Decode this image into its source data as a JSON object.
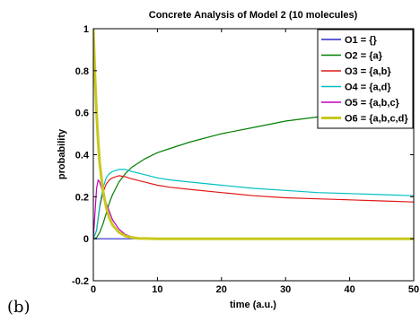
{
  "panel_label": "(b)",
  "colors": {
    "axis": "#000000",
    "O1": "#2828c8",
    "O2": "#008000",
    "O3": "#e01818",
    "O4": "#00c0c0",
    "O5": "#c000c0",
    "O6": "#c8c81e"
  },
  "chart_data": {
    "type": "line",
    "title": "Concrete Analysis of Model 2 (10 molecules)",
    "xlabel": "time (a.u.)",
    "ylabel": "probability",
    "xlim": [
      0,
      50
    ],
    "ylim": [
      -0.2,
      1
    ],
    "xticks": [
      0,
      10,
      20,
      30,
      40,
      50
    ],
    "xtick_labels": [
      "0",
      "10",
      "20",
      "30",
      "40",
      "50"
    ],
    "yticks": [
      -0.2,
      0,
      0.2,
      0.4,
      0.6,
      0.8,
      1
    ],
    "ytick_labels": [
      "-0.2",
      "0",
      "0.2",
      "0.4",
      "0.6",
      "0.8",
      "1"
    ],
    "grid": false,
    "legend_position": "top-right",
    "series": [
      {
        "name": "O1 = {}",
        "color": "#2828c8",
        "x": [
          0,
          0.5,
          1,
          2,
          3,
          5,
          10,
          20,
          30,
          40,
          50
        ],
        "y": [
          0,
          0,
          0,
          0,
          0,
          0,
          0,
          0,
          0,
          0,
          0
        ]
      },
      {
        "name": "O2 = {a}",
        "color": "#008000",
        "x": [
          0,
          0.5,
          1,
          1.5,
          2,
          2.5,
          3,
          4,
          5,
          6,
          7,
          8,
          10,
          12,
          15,
          20,
          25,
          30,
          35,
          40,
          45,
          50
        ],
        "y": [
          0,
          0.005,
          0.03,
          0.07,
          0.12,
          0.17,
          0.21,
          0.27,
          0.31,
          0.34,
          0.36,
          0.38,
          0.41,
          0.43,
          0.46,
          0.5,
          0.53,
          0.56,
          0.58,
          0.6,
          0.615,
          0.63
        ]
      },
      {
        "name": "O3 = {a,b}",
        "color": "#e01818",
        "x": [
          0,
          0.5,
          1,
          1.5,
          2,
          2.5,
          3,
          3.5,
          4,
          5,
          6,
          8,
          10,
          12,
          15,
          20,
          25,
          30,
          35,
          40,
          45,
          50
        ],
        "y": [
          0,
          0.04,
          0.15,
          0.22,
          0.26,
          0.28,
          0.29,
          0.295,
          0.3,
          0.295,
          0.285,
          0.27,
          0.255,
          0.245,
          0.235,
          0.22,
          0.205,
          0.195,
          0.19,
          0.185,
          0.18,
          0.175
        ]
      },
      {
        "name": "O4 = {a,d}",
        "color": "#00c0c0",
        "x": [
          0,
          0.5,
          1,
          1.5,
          2,
          2.5,
          3,
          3.5,
          4,
          5,
          6,
          8,
          10,
          12,
          15,
          20,
          25,
          30,
          35,
          40,
          45,
          50
        ],
        "y": [
          0,
          0.04,
          0.16,
          0.24,
          0.29,
          0.31,
          0.32,
          0.325,
          0.33,
          0.33,
          0.32,
          0.305,
          0.29,
          0.28,
          0.27,
          0.255,
          0.24,
          0.23,
          0.22,
          0.215,
          0.21,
          0.205
        ]
      },
      {
        "name": "O5 = {a,b,c}",
        "color": "#c000c0",
        "x": [
          0,
          0.25,
          0.5,
          0.75,
          1,
          1.5,
          2,
          3,
          4,
          5,
          6,
          7,
          8,
          10,
          20,
          30,
          40,
          50
        ],
        "y": [
          0,
          0.12,
          0.24,
          0.28,
          0.27,
          0.22,
          0.17,
          0.09,
          0.045,
          0.02,
          0.009,
          0.003,
          0.001,
          0,
          0,
          0,
          0,
          0
        ]
      },
      {
        "name": "O6 = {a,b,c,d}",
        "color": "#c8c81e",
        "x": [
          0,
          0.25,
          0.5,
          0.75,
          1,
          1.5,
          2,
          2.5,
          3,
          4,
          5,
          6,
          7,
          8,
          10,
          20,
          30,
          40,
          50
        ],
        "y": [
          1,
          0.78,
          0.6,
          0.46,
          0.36,
          0.23,
          0.15,
          0.1,
          0.065,
          0.03,
          0.013,
          0.006,
          0.002,
          0.001,
          0,
          0,
          0,
          0,
          0
        ]
      }
    ]
  }
}
